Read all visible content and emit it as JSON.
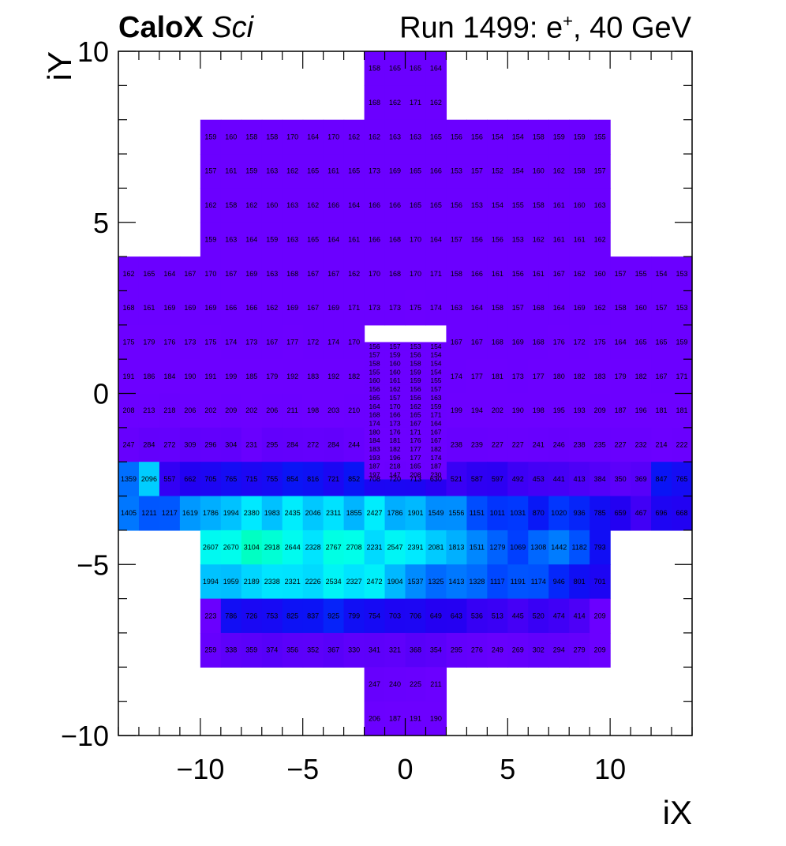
{
  "header": {
    "experiment": "CaloX",
    "subtitle": "Sci",
    "run_prefix": "Run 1499: e",
    "run_charge": "+",
    "run_suffix": ", 40 GeV"
  },
  "chart_data": {
    "type": "heatmap",
    "xlabel": "iX",
    "ylabel": "iY",
    "xlim": [
      -14,
      14
    ],
    "ylim": [
      -10,
      10
    ],
    "x_ticks": [
      -10,
      -5,
      0,
      5,
      10
    ],
    "y_ticks": [
      -10,
      -5,
      0,
      5,
      10
    ],
    "x_tick_labels": [
      "−10",
      "−5",
      "0",
      "5",
      "10"
    ],
    "y_tick_labels": [
      "−10",
      "−5",
      "0",
      "5",
      "10"
    ],
    "cells": [
      {
        "x": -2,
        "y": 8,
        "w": 4,
        "h": 2,
        "v": [
          158,
          165,
          165,
          164,
          168,
          162,
          171,
          162
        ]
      },
      {
        "x": -10,
        "y": 7,
        "w": 20,
        "h": 1,
        "v": [
          159,
          160,
          158,
          158,
          170,
          164,
          170,
          162,
          162,
          163,
          163,
          165,
          156,
          156,
          154,
          154,
          158,
          159,
          159,
          155
        ]
      },
      {
        "x": -10,
        "y": 6,
        "w": 20,
        "h": 1,
        "v": [
          157,
          161,
          159,
          163,
          162,
          165,
          161,
          165,
          173,
          169,
          165,
          166,
          153,
          157,
          152,
          154,
          160,
          162,
          158,
          157
        ]
      },
      {
        "x": -10,
        "y": 5,
        "w": 20,
        "h": 1,
        "v": [
          162,
          158,
          162,
          160,
          163,
          162,
          166,
          164,
          166,
          166,
          165,
          165,
          156,
          153,
          154,
          155,
          158,
          161,
          160,
          163
        ]
      },
      {
        "x": -10,
        "y": 4,
        "w": 20,
        "h": 1,
        "v": [
          159,
          163,
          164,
          159,
          163,
          165,
          164,
          161,
          166,
          168,
          170,
          164,
          157,
          156,
          156,
          153,
          162,
          161,
          161,
          162
        ]
      },
      {
        "x": -14,
        "y": 3,
        "w": 28,
        "h": 1,
        "v": [
          162,
          165,
          164,
          167,
          170,
          167,
          169,
          163,
          168,
          167,
          167,
          162,
          170,
          168,
          170,
          171,
          158,
          166,
          161,
          156,
          161,
          167,
          162,
          160,
          157,
          155,
          154,
          153
        ]
      },
      {
        "x": -14,
        "y": 2,
        "w": 28,
        "h": 1,
        "v": [
          168,
          161,
          169,
          169,
          169,
          166,
          166,
          162,
          169,
          167,
          169,
          171,
          173,
          173,
          175,
          174,
          163,
          164,
          158,
          157,
          168,
          164,
          169,
          162,
          158,
          160,
          157,
          153
        ]
      },
      {
        "x": -14,
        "y": 1,
        "w": 28,
        "h": 1,
        "v": [
          175,
          179,
          176,
          173,
          175,
          174,
          173,
          167,
          177,
          172,
          174,
          170,
          null,
          null,
          null,
          null,
          167,
          167,
          168,
          169,
          168,
          176,
          172,
          175,
          164,
          165,
          165,
          159
        ]
      },
      {
        "x": -14,
        "y": 0,
        "w": 28,
        "h": 1,
        "v": [
          191,
          186,
          184,
          190,
          191,
          199,
          185,
          179,
          192,
          183,
          192,
          182,
          null,
          null,
          null,
          null,
          174,
          177,
          181,
          173,
          177,
          180,
          182,
          183,
          179,
          182,
          167,
          171
        ]
      },
      {
        "x": -14,
        "y": -1,
        "w": 28,
        "h": 1,
        "v": [
          208,
          213,
          218,
          206,
          202,
          209,
          202,
          206,
          211,
          198,
          203,
          210,
          null,
          null,
          null,
          null,
          199,
          194,
          202,
          190,
          198,
          195,
          193,
          209,
          187,
          196,
          181,
          181
        ]
      },
      {
        "x": -14,
        "y": -2,
        "w": 28,
        "h": 1,
        "v": [
          247,
          284,
          272,
          309,
          296,
          304,
          231,
          295,
          284,
          272,
          284,
          244,
          null,
          null,
          null,
          null,
          238,
          239,
          227,
          227,
          241,
          246,
          238,
          235,
          227,
          232,
          214,
          222
        ]
      },
      {
        "x": -14,
        "y": -3,
        "w": 28,
        "h": 1,
        "v": [
          1359,
          2096,
          557,
          662,
          705,
          765,
          715,
          755,
          854,
          816,
          721,
          852,
          708,
          720,
          713,
          630,
          521,
          587,
          597,
          492,
          453,
          441,
          413,
          384,
          350,
          369,
          847,
          765
        ]
      },
      {
        "x": -14,
        "y": -4,
        "w": 28,
        "h": 1,
        "v": [
          1405,
          1211,
          1217,
          1619,
          1786,
          1994,
          2380,
          1983,
          2435,
          2046,
          2311,
          1855,
          2427,
          1786,
          1901,
          1549,
          1556,
          1151,
          1011,
          1031,
          870,
          1020,
          936,
          785,
          659,
          467,
          696,
          668
        ]
      },
      {
        "x": -10,
        "y": -5,
        "w": 20,
        "h": 1,
        "v": [
          2607,
          2670,
          3104,
          2918,
          2644,
          2328,
          2767,
          2708,
          2231,
          2547,
          2391,
          2081,
          1813,
          1511,
          1279,
          1069,
          1308,
          1442,
          1182,
          793
        ]
      },
      {
        "x": -10,
        "y": -6,
        "w": 20,
        "h": 1,
        "v": [
          1994,
          1959,
          2189,
          2338,
          2321,
          2226,
          2534,
          2327,
          2472,
          1904,
          1537,
          1325,
          1413,
          1328,
          1117,
          1191,
          1174,
          946,
          801,
          701
        ]
      },
      {
        "x": -10,
        "y": -7,
        "w": 20,
        "h": 1,
        "v": [
          223,
          786,
          726,
          753,
          825,
          837,
          925,
          799,
          754,
          703,
          706,
          649,
          643,
          536,
          513,
          445,
          520,
          474,
          414,
          209
        ]
      },
      {
        "x": -10,
        "y": -8,
        "w": 20,
        "h": 1,
        "v": [
          259,
          338,
          359,
          374,
          356,
          352,
          367,
          330,
          341,
          321,
          368,
          354,
          295,
          276,
          249,
          269,
          302,
          294,
          279,
          209
        ]
      },
      {
        "x": -2,
        "y": -10,
        "w": 4,
        "h": 2,
        "v": [
          247,
          240,
          225,
          211,
          206,
          187,
          191,
          190
        ]
      }
    ],
    "fine_cells": {
      "x": -2,
      "y": -2.5,
      "cols": 4,
      "rows": 16,
      "cell_h": 0.25,
      "v": [
        [
          156,
          157,
          153,
          154
        ],
        [
          157,
          159,
          156,
          154
        ],
        [
          158,
          160,
          158,
          154
        ],
        [
          155,
          160,
          159,
          154
        ],
        [
          160,
          161,
          159,
          155
        ],
        [
          156,
          162,
          156,
          157
        ],
        [
          165,
          157,
          156,
          163
        ],
        [
          164,
          170,
          162,
          159
        ],
        [
          168,
          166,
          165,
          171
        ],
        [
          174,
          173,
          167,
          164
        ],
        [
          180,
          176,
          171,
          167
        ],
        [
          184,
          181,
          176,
          167
        ],
        [
          183,
          182,
          177,
          182
        ],
        [
          193,
          196,
          177,
          174
        ],
        [
          187,
          218,
          165,
          187
        ],
        [
          197,
          147,
          208,
          230
        ]
      ]
    }
  }
}
